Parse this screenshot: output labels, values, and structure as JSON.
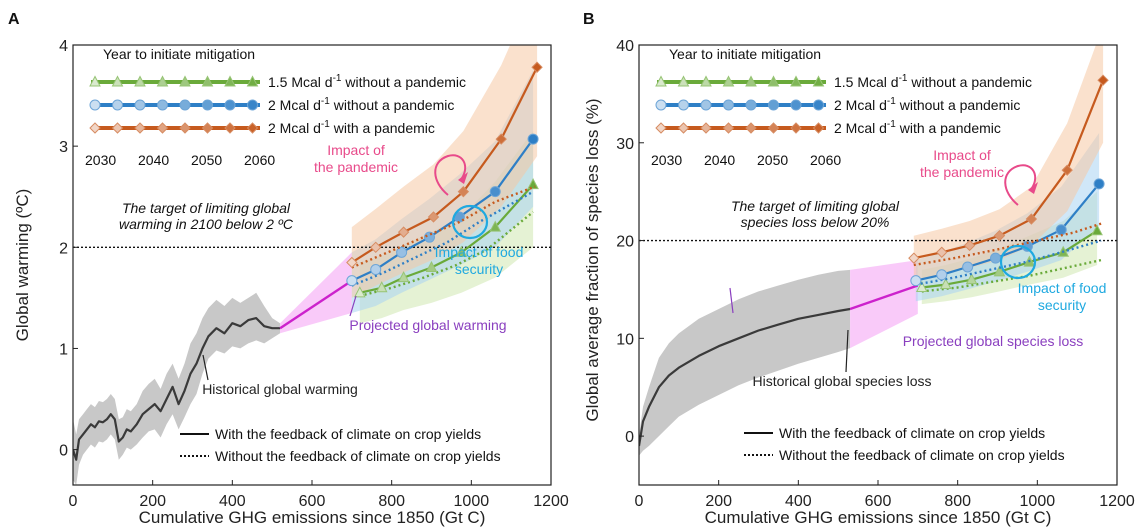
{
  "colors": {
    "green": "#6aaa3a",
    "green_light": "#cfe8b0",
    "blue": "#2e7fc6",
    "blue_light": "#a9d4f3",
    "orange": "#c65a1e",
    "orange_light": "#f6c9a4",
    "magenta": "#cc22cc",
    "magenta_band": "#f7b8f7",
    "history": "#3a3a3a",
    "history_band": "#c8c8c8",
    "pink_text": "#e84a8a",
    "cyan_text": "#1fa9e0",
    "purple_text": "#8a3fbf"
  },
  "legend_common": {
    "title": "Year to initiate mitigation",
    "series": [
      {
        "key": "green",
        "label_main": "1.5 Mcal d",
        "label_sup": "-1",
        "label_tail": " without a pandemic",
        "marker": "triangle"
      },
      {
        "key": "blue",
        "label_main": "2 Mcal d",
        "label_sup": "-1",
        "label_tail": " without a pandemic",
        "marker": "circle"
      },
      {
        "key": "orange",
        "label_main": "2 Mcal d",
        "label_sup": "-1",
        "label_tail": " with a pandemic",
        "marker": "diamond"
      }
    ],
    "years": [
      "2030",
      "2040",
      "2050",
      "2060"
    ],
    "line_solid": "With the feedback of climate on crop yields",
    "line_dotted": "Without the feedback of climate on crop yields"
  },
  "panels": [
    {
      "letter": "A",
      "xlabel": "Cumulative GHG emissions since 1850 (Gt C)",
      "ylabel": "Global warming (ºC)",
      "target_line1": "The target of limiting global",
      "target_line2": "warming in 2100 below 2 ºC",
      "annotation_pandemic_1": "Impact of",
      "annotation_pandemic_2": "the pandemic",
      "annotation_food_1": "Impact of food",
      "annotation_food_2": "security",
      "annotation_projected": "Projected global warming",
      "annotation_historical": "Historical global warming"
    },
    {
      "letter": "B",
      "xlabel": "Cumulative GHG emissions since 1850 (Gt C)",
      "ylabel": "Global average fraction of species loss (%)",
      "target_line1": "The target of limiting global",
      "target_line2": "species loss below 20%",
      "annotation_pandemic_1": "Impact of",
      "annotation_pandemic_2": "the pandemic",
      "annotation_food_1": "Impact of food",
      "annotation_food_2": "security",
      "annotation_projected": "Projected global species loss",
      "annotation_historical": "Historical global species loss"
    }
  ],
  "chart_data": [
    {
      "type": "line",
      "panel": "A",
      "xlabel": "Cumulative GHG emissions since 1850 (Gt C)",
      "ylabel": "Global warming (ºC)",
      "xlim": [
        0,
        1200
      ],
      "ylim": [
        -0.35,
        4
      ],
      "xticks": [
        0,
        200,
        400,
        600,
        800,
        1000,
        1200
      ],
      "yticks": [
        0,
        1,
        2,
        3,
        4
      ],
      "target": 2,
      "historical": {
        "x": [
          0,
          8,
          15,
          25,
          35,
          45,
          55,
          65,
          75,
          85,
          95,
          105,
          115,
          125,
          135,
          145,
          160,
          175,
          190,
          205,
          220,
          235,
          250,
          265,
          280,
          295,
          310,
          325,
          340,
          360,
          380,
          400,
          420,
          440,
          460,
          480,
          500,
          520
        ],
        "y": [
          0,
          -0.1,
          0.1,
          0.15,
          0.2,
          0.25,
          0.22,
          0.28,
          0.27,
          0.3,
          0.35,
          0.3,
          0.08,
          0.12,
          0.2,
          0.18,
          0.25,
          0.35,
          0.4,
          0.45,
          0.38,
          0.5,
          0.62,
          0.45,
          0.58,
          0.75,
          0.85,
          1.0,
          1.12,
          1.2,
          1.15,
          1.25,
          1.22,
          1.28,
          1.3,
          1.22,
          1.2,
          1.2
        ],
        "band_lo": [
          -0.3,
          -0.35,
          -0.15,
          -0.05,
          0.0,
          0.05,
          0.02,
          0.08,
          0.07,
          0.1,
          0.15,
          0.1,
          -0.1,
          -0.05,
          0.02,
          0.0,
          0.05,
          0.12,
          0.18,
          0.2,
          0.12,
          0.25,
          0.35,
          0.2,
          0.32,
          0.45,
          0.55,
          0.75,
          0.9,
          0.98,
          0.95,
          1.02,
          1.0,
          1.05,
          1.08,
          1.05,
          1.1,
          1.15
        ],
        "band_hi": [
          0.3,
          0.15,
          0.3,
          0.35,
          0.4,
          0.45,
          0.42,
          0.48,
          0.47,
          0.5,
          0.55,
          0.5,
          0.3,
          0.32,
          0.4,
          0.38,
          0.45,
          0.58,
          0.65,
          0.7,
          0.6,
          0.75,
          0.85,
          0.7,
          0.85,
          1.05,
          1.15,
          1.3,
          1.4,
          1.48,
          1.42,
          1.5,
          1.45,
          1.5,
          1.55,
          1.42,
          1.3,
          1.25
        ]
      },
      "projected": {
        "x": [
          520,
          700
        ],
        "y": [
          1.2,
          1.67
        ],
        "band_lo": [
          1.15,
          1.35
        ],
        "band_hi": [
          1.25,
          1.95
        ]
      },
      "series": [
        {
          "name": "1.5 Mcal d-1 without a pandemic",
          "key": "green",
          "marker": "triangle",
          "x": [
            720,
            775,
            830,
            900,
            975,
            1060,
            1155
          ],
          "y": [
            1.55,
            1.6,
            1.7,
            1.8,
            1.95,
            2.2,
            2.62
          ],
          "x_dot": [
            720,
            800,
            880,
            960,
            1040,
            1155
          ],
          "y_dot": [
            1.52,
            1.6,
            1.7,
            1.82,
            1.98,
            2.35
          ],
          "band_lo": [
            1.25,
            1.3,
            1.38,
            1.45,
            1.55,
            1.7,
            2.0
          ],
          "band_hi": [
            1.85,
            1.92,
            2.02,
            2.15,
            2.3,
            2.65,
            3.15
          ]
        },
        {
          "name": "2 Mcal d-1 without a pandemic",
          "key": "blue",
          "marker": "circle",
          "x": [
            700,
            760,
            825,
            895,
            970,
            1060,
            1155
          ],
          "y": [
            1.67,
            1.78,
            1.95,
            2.1,
            2.3,
            2.55,
            3.07
          ],
          "x_dot": [
            700,
            780,
            860,
            940,
            1020,
            1155
          ],
          "y_dot": [
            1.62,
            1.75,
            1.9,
            2.05,
            2.25,
            2.55
          ],
          "band_lo": [
            1.35,
            1.42,
            1.55,
            1.68,
            1.82,
            2.0,
            2.4
          ],
          "band_hi": [
            1.95,
            2.08,
            2.28,
            2.48,
            2.72,
            3.05,
            3.75
          ]
        },
        {
          "name": "2 Mcal d-1 with a pandemic",
          "key": "orange",
          "marker": "diamond",
          "x": [
            700,
            760,
            830,
            905,
            980,
            1075,
            1165
          ],
          "y": [
            1.85,
            2.0,
            2.15,
            2.3,
            2.55,
            3.07,
            3.78
          ],
          "x_dot": [
            700,
            790,
            880,
            970,
            1060,
            1160
          ],
          "y_dot": [
            1.8,
            1.95,
            2.1,
            2.25,
            2.45,
            2.6
          ],
          "band_lo": [
            1.5,
            1.62,
            1.75,
            1.88,
            2.05,
            2.4,
            2.9
          ],
          "band_hi": [
            2.2,
            2.38,
            2.6,
            2.82,
            3.15,
            3.8,
            4.6
          ]
        }
      ]
    },
    {
      "type": "line",
      "panel": "B",
      "xlabel": "Cumulative GHG emissions since 1850 (Gt C)",
      "ylabel": "Global average fraction of species loss (%)",
      "xlim": [
        0,
        1200
      ],
      "ylim": [
        -5,
        40
      ],
      "xticks": [
        0,
        200,
        400,
        600,
        800,
        1000,
        1200
      ],
      "yticks": [
        0,
        10,
        20,
        30,
        40
      ],
      "target": 20,
      "historical": {
        "x": [
          0,
          10,
          25,
          50,
          75,
          100,
          150,
          200,
          250,
          300,
          350,
          400,
          450,
          500,
          530
        ],
        "y": [
          -1,
          1.5,
          3,
          5,
          6.2,
          7,
          8.2,
          9.2,
          10,
          10.8,
          11.4,
          12,
          12.4,
          12.8,
          13
        ],
        "band_lo": [
          -2,
          -1.5,
          -1,
          0,
          1,
          2,
          3.2,
          4.2,
          5.2,
          6,
          6.7,
          7.4,
          8,
          8.6,
          9
        ],
        "band_hi": [
          0,
          3,
          5,
          8,
          9.5,
          10.5,
          12,
          13,
          14,
          14.8,
          15.4,
          16,
          16.5,
          16.9,
          17
        ]
      },
      "projected": {
        "x": [
          530,
          700
        ],
        "y": [
          13,
          15.4
        ],
        "band_lo": [
          9,
          12.5
        ],
        "band_hi": [
          17,
          18
        ]
      },
      "series": [
        {
          "name": "1.5 Mcal d-1 without a pandemic",
          "key": "green",
          "marker": "triangle",
          "x": [
            710,
            770,
            835,
            905,
            980,
            1065,
            1150
          ],
          "y": [
            15.2,
            15.5,
            16,
            16.8,
            17.8,
            18.8,
            21
          ],
          "x_dot": [
            710,
            800,
            890,
            980,
            1070,
            1160
          ],
          "y_dot": [
            14.8,
            15.2,
            15.8,
            16.4,
            17.2,
            18
          ],
          "band_lo": [
            13.5,
            13.8,
            14.2,
            14.8,
            15.5,
            16.2,
            17.5
          ],
          "band_hi": [
            17,
            17.5,
            18.2,
            19.2,
            20.5,
            22,
            25
          ]
        },
        {
          "name": "2 Mcal d-1 without a pandemic",
          "key": "blue",
          "marker": "circle",
          "x": [
            695,
            760,
            825,
            895,
            975,
            1060,
            1155
          ],
          "y": [
            15.9,
            16.5,
            17.3,
            18.2,
            19.4,
            21.1,
            25.8
          ],
          "x_dot": [
            695,
            790,
            880,
            970,
            1060,
            1160
          ],
          "y_dot": [
            15.5,
            16.2,
            17,
            17.8,
            18.8,
            20
          ],
          "band_lo": [
            13.8,
            14.3,
            15,
            15.8,
            16.8,
            18,
            21.5
          ],
          "band_hi": [
            18,
            18.8,
            19.8,
            21,
            22.8,
            25.5,
            31
          ]
        },
        {
          "name": "2 Mcal d-1 with a pandemic",
          "key": "orange",
          "marker": "diamond",
          "x": [
            690,
            760,
            830,
            905,
            985,
            1075,
            1165
          ],
          "y": [
            18.2,
            18.8,
            19.5,
            20.5,
            22.2,
            27.2,
            36.4
          ],
          "x_dot": [
            690,
            790,
            890,
            990,
            1090,
            1165
          ],
          "y_dot": [
            17.5,
            18.2,
            19,
            19.9,
            20.8,
            21.8
          ],
          "band_lo": [
            16,
            16.5,
            17.2,
            18,
            19.5,
            23,
            30
          ],
          "band_hi": [
            20.5,
            21.2,
            22,
            23.2,
            25.5,
            32,
            42
          ]
        }
      ]
    }
  ]
}
